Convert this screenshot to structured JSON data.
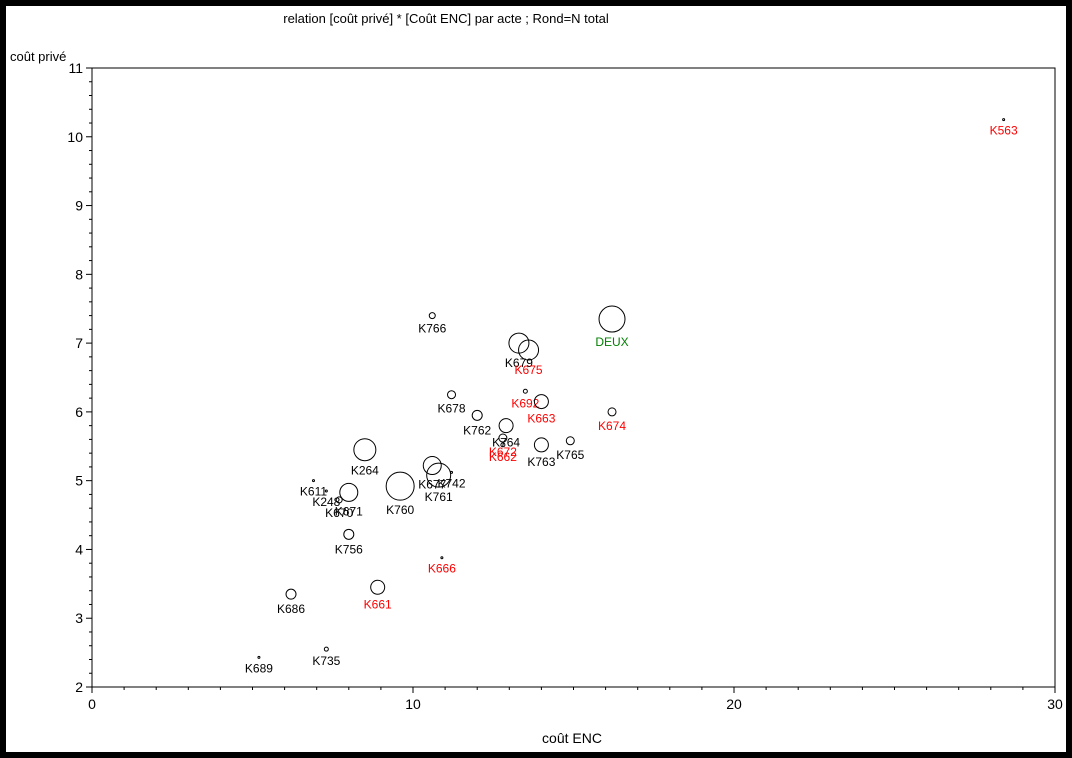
{
  "chart_data": {
    "type": "scatter",
    "title": "relation [coût privé] * [Coût ENC] par acte ; Rond=N total",
    "xlabel": "coût ENC",
    "ylabel": "coût privé",
    "xlim": [
      0,
      30
    ],
    "ylim": [
      2,
      11
    ],
    "x_ticks": [
      0,
      10,
      20,
      30
    ],
    "y_ticks": [
      2,
      3,
      4,
      5,
      6,
      7,
      8,
      9,
      10,
      11
    ],
    "grid": false,
    "legend": "none",
    "colors": {
      "default": "#000000",
      "highlight": "#ff0000",
      "deux": "#008000"
    },
    "points": [
      {
        "label": "K563",
        "x": 28.4,
        "y": 10.25,
        "r": 1,
        "color": "red"
      },
      {
        "label": "DEUX",
        "x": 16.2,
        "y": 7.35,
        "r": 13,
        "color": "green"
      },
      {
        "label": "K766",
        "x": 10.6,
        "y": 7.4,
        "r": 3,
        "color": "black"
      },
      {
        "label": "K679",
        "x": 13.3,
        "y": 7.0,
        "r": 10,
        "color": "black"
      },
      {
        "label": "K675",
        "x": 13.6,
        "y": 6.9,
        "r": 10,
        "color": "red"
      },
      {
        "label": "K678",
        "x": 11.2,
        "y": 6.25,
        "r": 4,
        "color": "black"
      },
      {
        "label": "K692",
        "x": 13.5,
        "y": 6.3,
        "r": 2,
        "color": "red"
      },
      {
        "label": "K663",
        "x": 14.0,
        "y": 6.15,
        "r": 7,
        "color": "red"
      },
      {
        "label": "K674",
        "x": 16.2,
        "y": 6.0,
        "r": 4,
        "color": "red"
      },
      {
        "label": "K762",
        "x": 12.0,
        "y": 5.95,
        "r": 5,
        "color": "black"
      },
      {
        "label": "K764",
        "x": 12.9,
        "y": 5.8,
        "r": 7,
        "color": "black"
      },
      {
        "label": "K672",
        "x": 12.8,
        "y": 5.62,
        "r": 4,
        "color": "red"
      },
      {
        "label": "K662",
        "x": 12.8,
        "y": 5.52,
        "r": 2,
        "color": "red"
      },
      {
        "label": "K763",
        "x": 14.0,
        "y": 5.52,
        "r": 7,
        "color": "black"
      },
      {
        "label": "K765",
        "x": 14.9,
        "y": 5.58,
        "r": 4,
        "color": "black"
      },
      {
        "label": "K264",
        "x": 8.5,
        "y": 5.45,
        "r": 11,
        "color": "black"
      },
      {
        "label": "K677",
        "x": 10.6,
        "y": 5.22,
        "r": 9,
        "color": "black"
      },
      {
        "label": "K761",
        "x": 10.8,
        "y": 5.08,
        "r": 12,
        "color": "black"
      },
      {
        "label": "K742",
        "x": 11.2,
        "y": 5.12,
        "r": 1,
        "color": "black"
      },
      {
        "label": "K760",
        "x": 9.6,
        "y": 4.92,
        "r": 14,
        "color": "black"
      },
      {
        "label": "K611",
        "x": 6.9,
        "y": 5.0,
        "r": 1,
        "color": "black"
      },
      {
        "label": "K248",
        "x": 7.3,
        "y": 4.85,
        "r": 1,
        "color": "black"
      },
      {
        "label": "K671",
        "x": 8.0,
        "y": 4.83,
        "r": 9,
        "color": "black"
      },
      {
        "label": "K670",
        "x": 7.7,
        "y": 4.72,
        "r": 3,
        "color": "black"
      },
      {
        "label": "K756",
        "x": 8.0,
        "y": 4.22,
        "r": 5,
        "color": "black"
      },
      {
        "label": "K666",
        "x": 10.9,
        "y": 3.88,
        "r": 1,
        "color": "red"
      },
      {
        "label": "K661",
        "x": 8.9,
        "y": 3.45,
        "r": 7,
        "color": "red"
      },
      {
        "label": "K686",
        "x": 6.2,
        "y": 3.35,
        "r": 5,
        "color": "black"
      },
      {
        "label": "K735",
        "x": 7.3,
        "y": 2.55,
        "r": 2,
        "color": "black"
      },
      {
        "label": "K689",
        "x": 5.2,
        "y": 2.43,
        "r": 1,
        "color": "black"
      }
    ]
  }
}
